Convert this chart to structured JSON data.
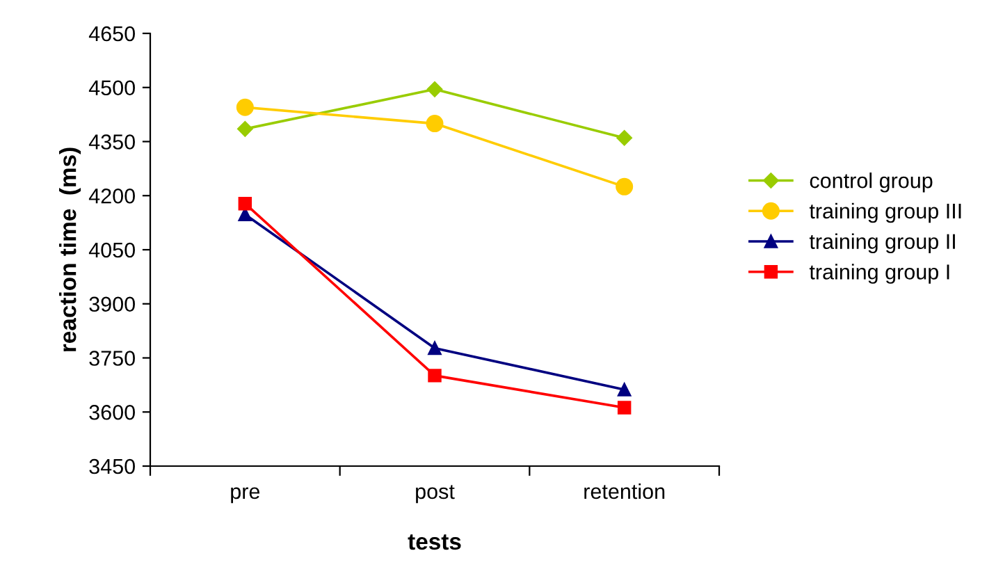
{
  "chart_data": {
    "type": "line",
    "xlabel": "tests",
    "ylabel": "reaction time  (ms)",
    "categories": [
      "pre",
      "post",
      "retention"
    ],
    "series": [
      {
        "name": "control group",
        "color": "#99cc00",
        "marker": "diamond",
        "values": [
          4385,
          4495,
          4360
        ]
      },
      {
        "name": "training group III",
        "color": "#ffcc00",
        "marker": "circle",
        "values": [
          4445,
          4400,
          4225
        ]
      },
      {
        "name": "training group II",
        "color": "#000080",
        "marker": "triangle",
        "values": [
          4148,
          3777,
          3662
        ]
      },
      {
        "name": "training group I",
        "color": "#ff0000",
        "marker": "square",
        "values": [
          4178,
          3701,
          3612
        ]
      }
    ],
    "ylim": [
      3450,
      4650
    ],
    "yticks": [
      3450,
      3600,
      3750,
      3900,
      4050,
      4200,
      4350,
      4500,
      4650
    ],
    "grid": false,
    "legend": "right"
  }
}
